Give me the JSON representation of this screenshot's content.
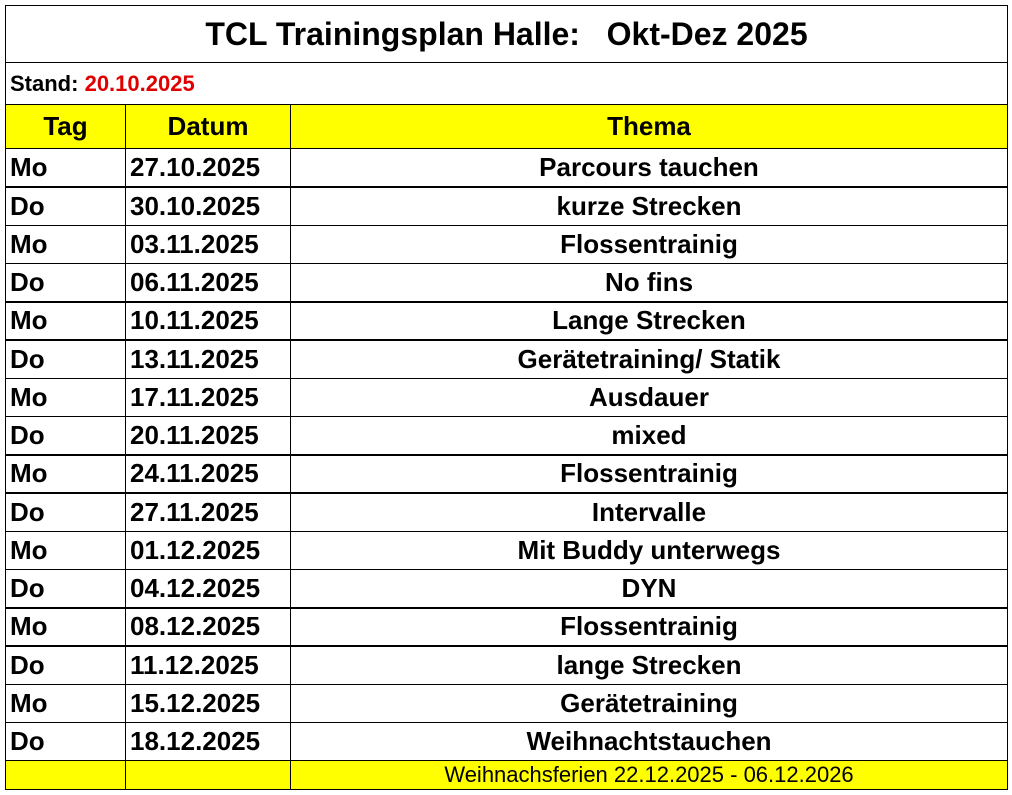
{
  "header": {
    "title": "TCL Trainingsplan Halle:   Okt-Dez 2025",
    "stand_label": "Stand:",
    "stand_date": "20.10.2025"
  },
  "table": {
    "columns": [
      "Tag",
      "Datum",
      "Thema"
    ],
    "rows": [
      [
        "Mo",
        "27.10.2025",
        "Parcours tauchen"
      ],
      [
        "Do",
        "30.10.2025",
        "kurze Strecken"
      ],
      [
        "Mo",
        "03.11.2025",
        "Flossentrainig"
      ],
      [
        "Do",
        "06.11.2025",
        "No fins"
      ],
      [
        "Mo",
        "10.11.2025",
        "Lange Strecken"
      ],
      [
        "Do",
        "13.11.2025",
        "Gerätetraining/ Statik"
      ],
      [
        "Mo",
        "17.11.2025",
        "Ausdauer"
      ],
      [
        "Do",
        "20.11.2025",
        "mixed"
      ],
      [
        "Mo",
        "24.11.2025",
        "Flossentrainig"
      ],
      [
        "Do",
        "27.11.2025",
        "Intervalle"
      ],
      [
        "Mo",
        "01.12.2025",
        "Mit Buddy unterwegs"
      ],
      [
        "Do",
        "04.12.2025",
        "DYN"
      ],
      [
        "Mo",
        "08.12.2025",
        "Flossentrainig"
      ],
      [
        "Do",
        "11.12.2025",
        "lange Strecken"
      ],
      [
        "Mo",
        "15.12.2025",
        "Gerätetraining"
      ],
      [
        "Do",
        "18.12.2025",
        "Weihnachtstauchen"
      ]
    ],
    "footer_note": "Weihnachsferien 22.12.2025 - 06.12.2026"
  }
}
